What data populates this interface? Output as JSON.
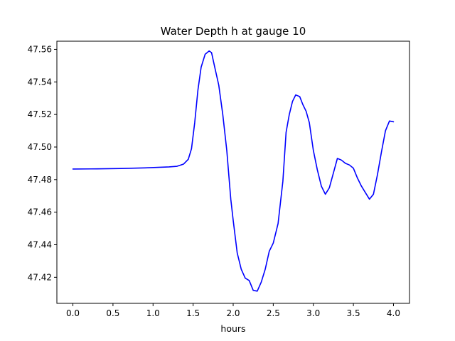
{
  "chart_data": {
    "type": "line",
    "title": "Water Depth h at gauge 10",
    "xlabel": "hours",
    "ylabel": "",
    "xlim": [
      -0.2,
      4.2
    ],
    "ylim": [
      47.404,
      47.565
    ],
    "x_ticks": [
      0.0,
      0.5,
      1.0,
      1.5,
      2.0,
      2.5,
      3.0,
      3.5,
      4.0
    ],
    "x_tick_labels": [
      "0.0",
      "0.5",
      "1.0",
      "1.5",
      "2.0",
      "2.5",
      "3.0",
      "3.5",
      "4.0"
    ],
    "y_ticks": [
      47.42,
      47.44,
      47.46,
      47.48,
      47.5,
      47.52,
      47.54,
      47.56
    ],
    "y_tick_labels": [
      "47.42",
      "47.44",
      "47.46",
      "47.48",
      "47.50",
      "47.52",
      "47.54",
      "47.56"
    ],
    "grid": false,
    "legend": "none",
    "series": [
      {
        "color": "#0000ff",
        "x": [
          0.0,
          0.3,
          0.6,
          0.9,
          1.2,
          1.3,
          1.38,
          1.44,
          1.48,
          1.52,
          1.56,
          1.6,
          1.65,
          1.7,
          1.73,
          1.77,
          1.82,
          1.87,
          1.92,
          1.97,
          2.0,
          2.05,
          2.1,
          2.15,
          2.2,
          2.25,
          2.3,
          2.35,
          2.4,
          2.45,
          2.5,
          2.56,
          2.62,
          2.66,
          2.7,
          2.74,
          2.78,
          2.83,
          2.87,
          2.91,
          2.95,
          3.0,
          3.05,
          3.1,
          3.15,
          3.2,
          3.25,
          3.3,
          3.35,
          3.4,
          3.45,
          3.5,
          3.55,
          3.6,
          3.65,
          3.7,
          3.75,
          3.8,
          3.85,
          3.9,
          3.95,
          4.0
        ],
        "y": [
          47.4865,
          47.4866,
          47.4868,
          47.4872,
          47.4878,
          47.4882,
          47.4895,
          47.4925,
          47.499,
          47.515,
          47.535,
          47.549,
          47.557,
          47.559,
          47.558,
          47.549,
          47.538,
          47.52,
          47.498,
          47.468,
          47.455,
          47.435,
          47.425,
          47.4195,
          47.418,
          47.412,
          47.4115,
          47.417,
          47.425,
          47.436,
          47.441,
          47.453,
          47.479,
          47.509,
          47.52,
          47.528,
          47.532,
          47.531,
          47.526,
          47.522,
          47.515,
          47.498,
          47.486,
          47.476,
          47.471,
          47.475,
          47.484,
          47.493,
          47.492,
          47.49,
          47.489,
          47.487,
          47.481,
          47.476,
          47.472,
          47.468,
          47.471,
          47.483,
          47.497,
          47.51,
          47.516,
          47.5155
        ]
      }
    ]
  }
}
